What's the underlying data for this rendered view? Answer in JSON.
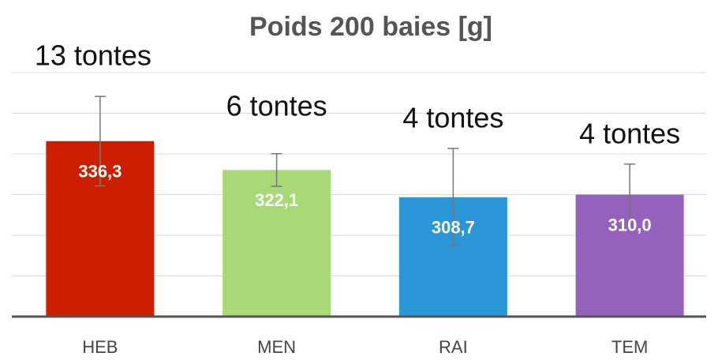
{
  "chart_data": {
    "type": "bar",
    "title": "Poids 200 baies [g]",
    "categories": [
      "HEB",
      "MEN",
      "RAI",
      "TEM"
    ],
    "values": [
      336.3,
      322.1,
      308.7,
      310.0
    ],
    "value_labels": [
      "336,3",
      "322,1",
      "308,7",
      "310,0"
    ],
    "errors": [
      22,
      8,
      24,
      15
    ],
    "colors": [
      "#cc1f00",
      "#a9d977",
      "#2a96d8",
      "#9461bc"
    ],
    "annotations": [
      "13 tontes",
      "6 tontes",
      "4 tontes",
      "4 tontes"
    ],
    "ylim": [
      250,
      370
    ],
    "yticks": [
      250,
      270,
      290,
      310,
      330,
      350,
      370
    ],
    "grid": true
  }
}
